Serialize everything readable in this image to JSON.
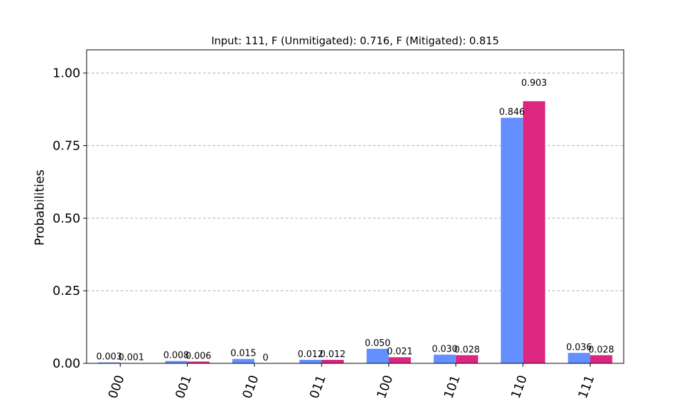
{
  "chart_data": {
    "type": "bar",
    "title": "Input: 111, F (Unmitigated): 0.716, F (Mitigated): 0.815",
    "xlabel": "",
    "ylabel": "Probabilities",
    "ylim": [
      0,
      1.08
    ],
    "yticks": [
      0.0,
      0.25,
      0.5,
      0.75,
      1.0
    ],
    "ytick_labels": [
      "0.00",
      "0.25",
      "0.50",
      "0.75",
      "1.00"
    ],
    "grid": true,
    "categories": [
      "000",
      "001",
      "010",
      "011",
      "100",
      "101",
      "110",
      "111"
    ],
    "series": [
      {
        "color": "#648fff",
        "values": [
          0.003,
          0.008,
          0.015,
          0.012,
          0.05,
          0.03,
          0.846,
          0.036
        ],
        "labels": [
          "0.003",
          "0.008",
          "0.015",
          "0.012",
          "0.050",
          "0.030",
          "0.846",
          "0.036"
        ]
      },
      {
        "color": "#dc267f",
        "values": [
          0.001,
          0.006,
          0,
          0.012,
          0.021,
          0.028,
          0.903,
          0.028
        ],
        "labels": [
          "0.001",
          "0.006",
          "0",
          "0.012",
          "0.021",
          "0.028",
          "0.903",
          "0.028"
        ]
      }
    ]
  }
}
